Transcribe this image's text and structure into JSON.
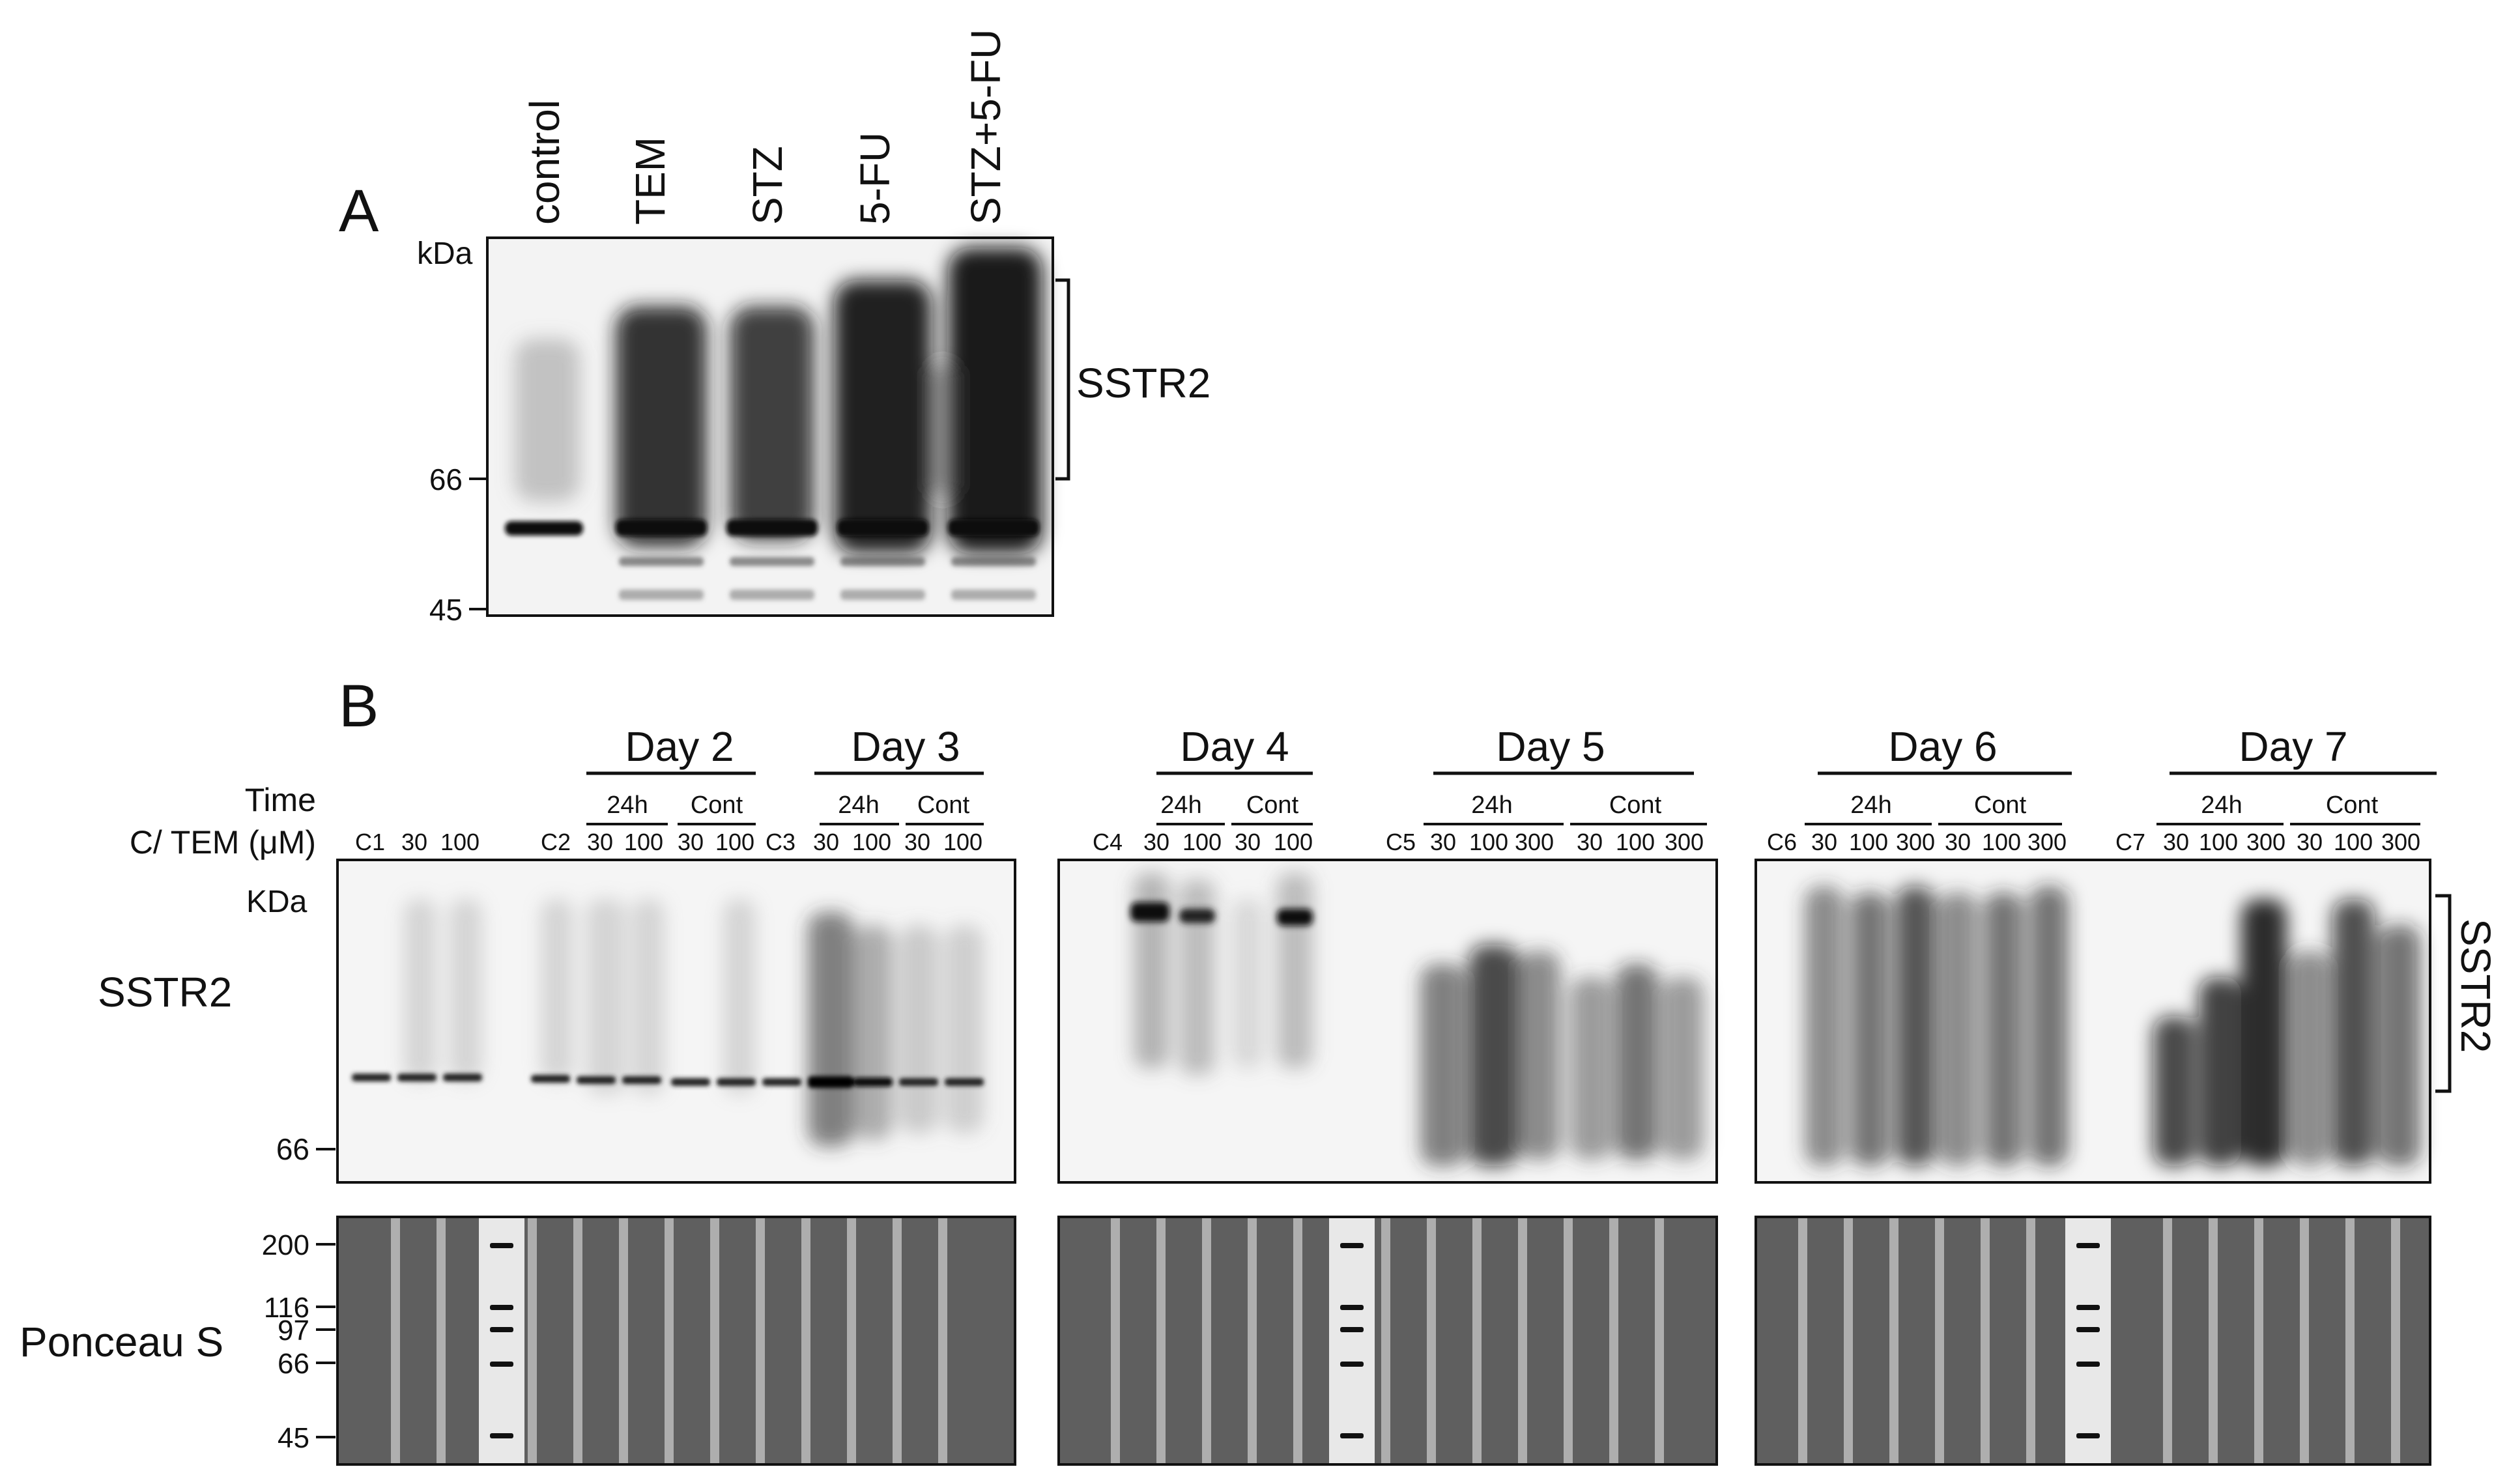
{
  "panel_a": {
    "letter": "A",
    "lanes": [
      "control",
      "TEM",
      "STZ",
      "5-FU",
      "STZ+5-FU"
    ],
    "unit": "kDa",
    "markers": [
      "66",
      "45"
    ],
    "band_label": "SSTR2"
  },
  "panel_b": {
    "letter": "B",
    "row_time": "Time",
    "row_conc": "C/ TEM (μM)",
    "blot_label": "SSTR2",
    "stain_label": "Ponceau S",
    "unit": "KDa",
    "marker_66": "66",
    "side_label": "SSTR2",
    "ladder": [
      "200",
      "116",
      "97",
      "66",
      "45"
    ],
    "days": [
      "Day 2",
      "Day 3",
      "Day 4",
      "Day 5",
      "Day 6",
      "Day 7"
    ],
    "h24": "24h",
    "cont": "Cont",
    "blot1_lanes": [
      "C1",
      "30",
      "100",
      "C2",
      "30",
      "100",
      "30",
      "100",
      "C3",
      "30",
      "100",
      "30",
      "100"
    ],
    "blot2_lanes": [
      "C4",
      "30",
      "100",
      "30",
      "100",
      "C5",
      "30",
      "100",
      "300",
      "30",
      "100",
      "300"
    ],
    "blot3_lanes": [
      "C6",
      "30",
      "100",
      "300",
      "30",
      "100",
      "300",
      "C7",
      "30",
      "100",
      "300",
      "30",
      "100",
      "300"
    ]
  }
}
